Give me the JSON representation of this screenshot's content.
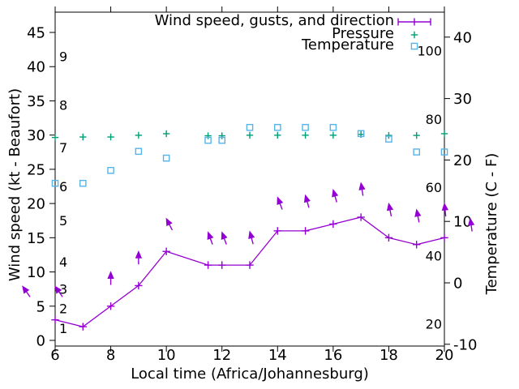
{
  "chart_data": {
    "type": "line",
    "title": "",
    "xlabel": "Local time (Africa/Johannesburg)",
    "ylabel_left": "Wind speed (kt - Beaufort)",
    "ylabel_right": "Temperature (C - F)",
    "xlim": [
      6,
      20
    ],
    "x_ticks": [
      6,
      8,
      10,
      12,
      14,
      16,
      18,
      20
    ],
    "wind_axis_ticks_kt": [
      0,
      5,
      10,
      15,
      20,
      25,
      30,
      35,
      40,
      45
    ],
    "beaufort_labels": [
      {
        "n": "1",
        "kt": 1.8
      },
      {
        "n": "2",
        "kt": 4.7
      },
      {
        "n": "3",
        "kt": 7.5
      },
      {
        "n": "4",
        "kt": 11.5
      },
      {
        "n": "5",
        "kt": 17.5
      },
      {
        "n": "6",
        "kt": 22.5
      },
      {
        "n": "7",
        "kt": 28.2
      },
      {
        "n": "8",
        "kt": 34.4
      },
      {
        "n": "9",
        "kt": 41.5
      }
    ],
    "temp_axis_ticks_c": [
      -10,
      0,
      10,
      20,
      30,
      40
    ],
    "fahrenheit_labels": [
      20,
      40,
      60,
      80,
      100
    ],
    "legend_position": "top-right",
    "grid": false,
    "x": [
      6,
      7,
      8,
      9,
      10,
      11.5,
      12,
      13,
      14,
      15,
      16,
      17,
      18,
      19,
      20
    ],
    "series": [
      {
        "name": "Wind speed, gusts, and direction",
        "type": "line+points",
        "marker": "plus",
        "color": "#9400d3",
        "unit": "kt",
        "values": [
          3,
          2,
          5,
          8,
          13,
          11,
          11,
          11,
          16,
          16,
          17,
          18,
          15,
          14,
          15
        ]
      },
      {
        "name": "Pressure",
        "type": "points",
        "marker": "plus",
        "color": "#009e73",
        "unit": "inHg (left axis)",
        "values": [
          29.65,
          29.72,
          29.72,
          29.97,
          30.2,
          29.9,
          29.9,
          29.98,
          29.98,
          29.98,
          29.98,
          30.1,
          29.95,
          29.95,
          30.2
        ]
      },
      {
        "name": "Temperature",
        "type": "points",
        "marker": "square",
        "color": "#56b4e9",
        "unit": "C (right axis)",
        "values": [
          16.2,
          16.2,
          18.3,
          21.4,
          20.3,
          23.2,
          23.2,
          25.3,
          25.3,
          25.3,
          25.3,
          24.3,
          23.4,
          21.3,
          21.3
        ]
      }
    ],
    "gust_arrows": [
      {
        "x": 4.83,
        "gust_kt": 7.9,
        "dir_deg": -35
      },
      {
        "x": 6,
        "gust_kt": 7.9,
        "dir_deg": -35
      },
      {
        "x": 8,
        "gust_kt": 10,
        "dir_deg": 0
      },
      {
        "x": 9,
        "gust_kt": 13,
        "dir_deg": 0
      },
      {
        "x": 10,
        "gust_kt": 17.8,
        "dir_deg": -27
      },
      {
        "x": 11.5,
        "gust_kt": 15.8,
        "dir_deg": -20
      },
      {
        "x": 12,
        "gust_kt": 15.8,
        "dir_deg": -20
      },
      {
        "x": 13,
        "gust_kt": 15.9,
        "dir_deg": -15
      },
      {
        "x": 14,
        "gust_kt": 20.9,
        "dir_deg": -21
      },
      {
        "x": 15,
        "gust_kt": 21.2,
        "dir_deg": -16
      },
      {
        "x": 16,
        "gust_kt": 22,
        "dir_deg": -16
      },
      {
        "x": 17,
        "gust_kt": 23,
        "dir_deg": -9
      },
      {
        "x": 18,
        "gust_kt": 20,
        "dir_deg": -11
      },
      {
        "x": 19,
        "gust_kt": 19.1,
        "dir_deg": -11
      },
      {
        "x": 20,
        "gust_kt": 20,
        "dir_deg": -6
      },
      {
        "x": 20.93,
        "gust_kt": 17.8,
        "dir_deg": -8
      }
    ],
    "colors": {
      "wind": "#9400d3",
      "pressure": "#009e73",
      "temperature": "#56b4e9",
      "foreground": "#000000",
      "background": "#ffffff"
    }
  }
}
